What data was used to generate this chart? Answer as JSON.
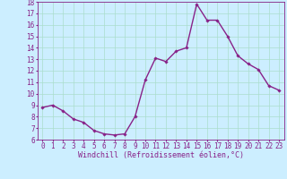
{
  "x": [
    0,
    1,
    2,
    3,
    4,
    5,
    6,
    7,
    8,
    9,
    10,
    11,
    12,
    13,
    14,
    15,
    16,
    17,
    18,
    19,
    20,
    21,
    22,
    23
  ],
  "y": [
    8.8,
    9.0,
    8.5,
    7.8,
    7.5,
    6.8,
    6.5,
    6.4,
    6.5,
    8.0,
    11.2,
    13.1,
    12.8,
    13.7,
    14.0,
    17.8,
    16.4,
    16.4,
    15.0,
    13.3,
    12.6,
    12.1,
    10.7,
    10.3
  ],
  "line_color": "#882288",
  "marker": "D",
  "marker_size": 1.8,
  "bg_color": "#cceeff",
  "grid_color": "#aaddcc",
  "xlabel": "Windchill (Refroidissement éolien,°C)",
  "tick_color": "#882288",
  "ylim": [
    6,
    18
  ],
  "xlim": [
    -0.5,
    23.5
  ],
  "yticks": [
    6,
    7,
    8,
    9,
    10,
    11,
    12,
    13,
    14,
    15,
    16,
    17,
    18
  ],
  "xticks": [
    0,
    1,
    2,
    3,
    4,
    5,
    6,
    7,
    8,
    9,
    10,
    11,
    12,
    13,
    14,
    15,
    16,
    17,
    18,
    19,
    20,
    21,
    22,
    23
  ],
  "tick_fontsize": 5.5,
  "xlabel_fontsize": 6.0,
  "linewidth": 1.0
}
